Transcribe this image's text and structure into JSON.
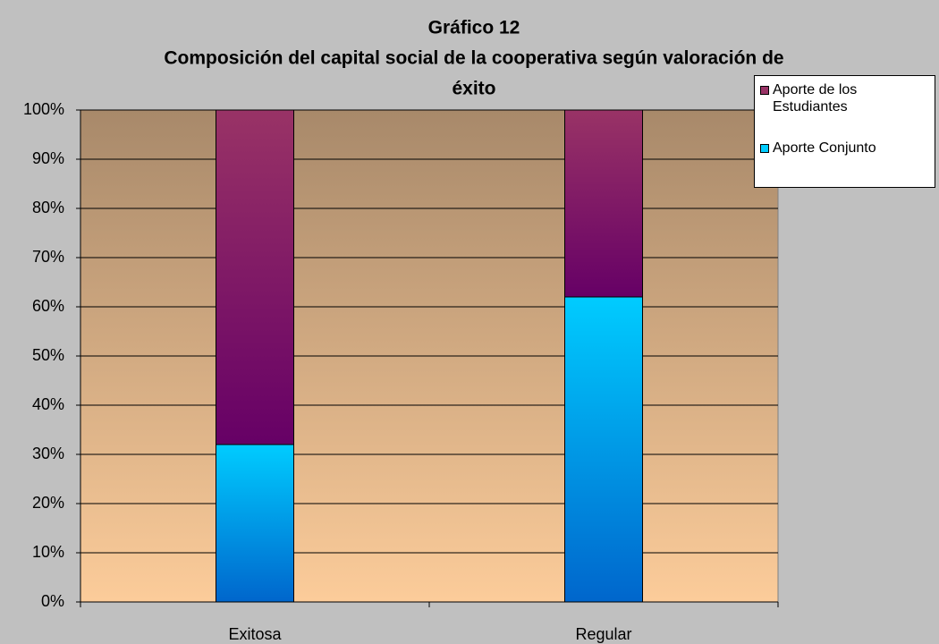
{
  "chart_data": {
    "type": "stacked_bar",
    "title": [
      "Gráfico 12",
      "Composición del capital social de la cooperativa según valoración de",
      "éxito"
    ],
    "categories": [
      "Exitosa",
      "Regular"
    ],
    "series": [
      {
        "name": "Aporte Conjunto",
        "color": "#00ccff",
        "values": [
          32,
          62
        ]
      },
      {
        "name": "Aporte de los Estudiantes",
        "color": "#993366",
        "values": [
          68,
          38
        ]
      }
    ],
    "ylim": [
      0,
      100
    ],
    "yticks": [
      {
        "value": 0,
        "label": "0%"
      },
      {
        "value": 10,
        "label": "10%"
      },
      {
        "value": 20,
        "label": "20%"
      },
      {
        "value": 30,
        "label": "30%"
      },
      {
        "value": 40,
        "label": "40%"
      },
      {
        "value": 50,
        "label": "50%"
      },
      {
        "value": 60,
        "label": "60%"
      },
      {
        "value": 70,
        "label": "70%"
      },
      {
        "value": 80,
        "label": "80%"
      },
      {
        "value": 90,
        "label": "90%"
      },
      {
        "value": 100,
        "label": "100%"
      }
    ],
    "grid": true,
    "legend": "top-right"
  }
}
